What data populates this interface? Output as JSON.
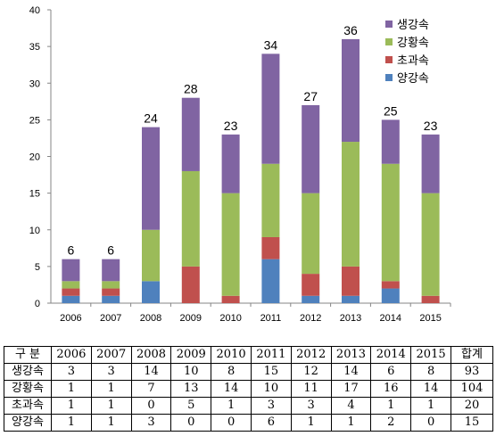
{
  "chart_data": {
    "type": "bar",
    "stacked": true,
    "categories": [
      "2006",
      "2007",
      "2008",
      "2009",
      "2010",
      "2011",
      "2012",
      "2013",
      "2014",
      "2015"
    ],
    "series": [
      {
        "name": "양강속",
        "color": "#4f81bd",
        "values": [
          1,
          1,
          3,
          0,
          0,
          6,
          1,
          1,
          2,
          0
        ]
      },
      {
        "name": "초과속",
        "color": "#c0504d",
        "values": [
          1,
          1,
          0,
          5,
          1,
          3,
          3,
          4,
          1,
          1
        ]
      },
      {
        "name": "강황속",
        "color": "#9bbb59",
        "values": [
          1,
          1,
          7,
          13,
          14,
          10,
          11,
          17,
          16,
          14
        ]
      },
      {
        "name": "생강속",
        "color": "#8064a2",
        "values": [
          3,
          3,
          14,
          10,
          8,
          15,
          12,
          14,
          6,
          8
        ]
      }
    ],
    "totals": [
      "6",
      "6",
      "24",
      "28",
      "23",
      "34",
      "27",
      "36",
      "25",
      "23"
    ],
    "ylim": [
      0,
      40
    ],
    "yticks": [
      "0",
      "5",
      "10",
      "15",
      "20",
      "25",
      "30",
      "35",
      "40"
    ],
    "legend_order": [
      "생강속",
      "강황속",
      "초과속",
      "양강속"
    ],
    "legend_position": "top-right",
    "grid": false
  },
  "table": {
    "header": [
      "구 분",
      "2006",
      "2007",
      "2008",
      "2009",
      "2010",
      "2011",
      "2012",
      "2013",
      "2014",
      "2015",
      "합계"
    ],
    "rows": [
      [
        "생강속",
        "3",
        "3",
        "14",
        "10",
        "8",
        "15",
        "12",
        "14",
        "6",
        "8",
        "93"
      ],
      [
        "강황속",
        "1",
        "1",
        "7",
        "13",
        "14",
        "10",
        "11",
        "17",
        "16",
        "14",
        "104"
      ],
      [
        "초과속",
        "1",
        "1",
        "0",
        "5",
        "1",
        "3",
        "3",
        "4",
        "1",
        "1",
        "20"
      ],
      [
        "양강속",
        "1",
        "1",
        "3",
        "0",
        "0",
        "6",
        "1",
        "1",
        "2",
        "0",
        "15"
      ]
    ]
  }
}
